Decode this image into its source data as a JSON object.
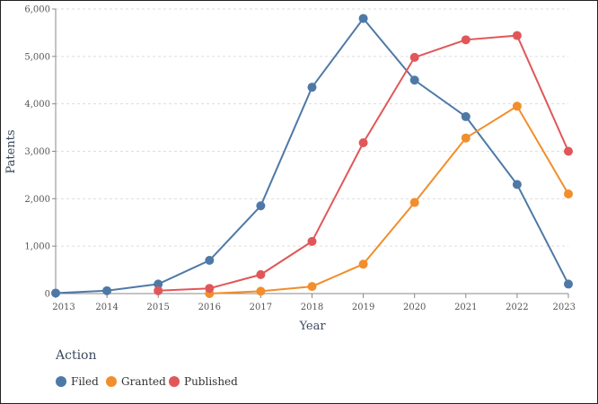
{
  "chart_data": {
    "type": "line",
    "xlabel": "Year",
    "ylabel": "Patents",
    "x": [
      "2013",
      "2014",
      "2015",
      "2016",
      "2017",
      "2018",
      "2019",
      "2020",
      "2021",
      "2022",
      "2023"
    ],
    "ylim": [
      0,
      6000
    ],
    "yticks": [
      "0",
      "1,000",
      "2,000",
      "3,000",
      "4,000",
      "5,000",
      "6,000"
    ],
    "ytick_values": [
      0,
      1000,
      2000,
      3000,
      4000,
      5000,
      6000
    ],
    "grid": true,
    "legend": {
      "title": "Action",
      "placement": "bottom-left"
    },
    "series": [
      {
        "name": "Filed",
        "color": "#4e79a7",
        "values": [
          10,
          60,
          200,
          700,
          1850,
          4350,
          5800,
          4500,
          3730,
          2300,
          200
        ]
      },
      {
        "name": "Granted",
        "color": "#f28e2b",
        "values": [
          null,
          null,
          null,
          0,
          50,
          150,
          620,
          1920,
          3280,
          3950,
          2100
        ]
      },
      {
        "name": "Published",
        "color": "#e15759",
        "values": [
          null,
          null,
          60,
          110,
          400,
          1100,
          3180,
          4980,
          5350,
          5440,
          3000
        ]
      }
    ]
  }
}
